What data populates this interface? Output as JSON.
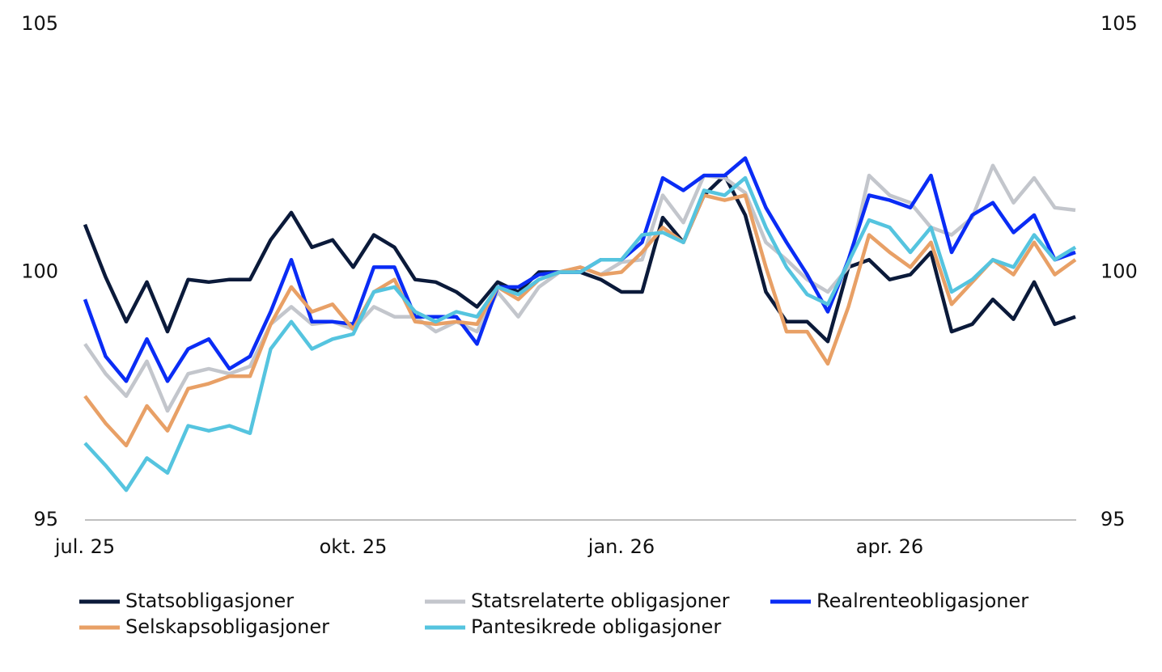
{
  "chart_data": {
    "type": "line",
    "categories": [
      "jul. 25",
      null,
      null,
      null,
      null,
      null,
      null,
      null,
      null,
      null,
      null,
      null,
      null,
      "okt. 25",
      null,
      null,
      null,
      null,
      null,
      null,
      null,
      null,
      null,
      null,
      null,
      null,
      "jan. 26",
      null,
      null,
      null,
      null,
      null,
      null,
      null,
      null,
      null,
      null,
      null,
      null,
      "apr. 26",
      null,
      null,
      null,
      null,
      null,
      null,
      null,
      null,
      null
    ],
    "series": [
      {
        "name": "Statsobligasjoner",
        "color": "#0b1a3a",
        "values": [
          100.96,
          99.9,
          99.0,
          99.8,
          98.8,
          99.85,
          99.8,
          99.85,
          99.85,
          100.65,
          101.2,
          100.5,
          100.65,
          100.1,
          100.75,
          100.5,
          99.85,
          99.8,
          99.6,
          99.3,
          99.8,
          99.6,
          100,
          100,
          100,
          99.85,
          99.6,
          99.6,
          101.1,
          100.6,
          101.55,
          101.95,
          101.15,
          99.6,
          99.0,
          99.0,
          98.6,
          100.1,
          100.25,
          99.85,
          99.95,
          100.4,
          98.8,
          98.95,
          99.45,
          99.05,
          99.8,
          98.95,
          99.1
        ]
      },
      {
        "name": "Statsrelaterte obligasjoner",
        "color": "#c3c6cc",
        "values": [
          98.55,
          97.95,
          97.5,
          98.2,
          97.2,
          97.95,
          98.05,
          97.95,
          98.1,
          98.95,
          99.3,
          98.95,
          99.0,
          98.85,
          99.3,
          99.1,
          99.1,
          98.8,
          99.0,
          98.8,
          99.6,
          99.1,
          99.7,
          100,
          100.1,
          99.95,
          100.2,
          100.25,
          101.55,
          101,
          101.95,
          101.9,
          101.6,
          100.6,
          100.25,
          99.85,
          99.6,
          100.1,
          101.95,
          101.55,
          101.4,
          100.9,
          100.75,
          101.1,
          102.15,
          101.4,
          101.9,
          101.3,
          101.25
        ]
      },
      {
        "name": "Realrenteobligasjoner",
        "color": "#0a2cf5",
        "values": [
          99.45,
          98.3,
          97.8,
          98.65,
          97.8,
          98.45,
          98.65,
          98.05,
          98.3,
          99.2,
          100.25,
          99.0,
          99.0,
          98.95,
          100.1,
          100.1,
          99.1,
          99.1,
          99.1,
          98.55,
          99.7,
          99.7,
          99.95,
          100,
          100,
          100.25,
          100.25,
          100.6,
          101.9,
          101.65,
          101.95,
          101.95,
          102.3,
          101.3,
          100.6,
          99.95,
          99.2,
          100.25,
          101.55,
          101.45,
          101.3,
          101.95,
          100.4,
          101.15,
          101.4,
          100.8,
          101.15,
          100.25,
          100.4
        ]
      },
      {
        "name": "Selskapsobligasjoner",
        "color": "#e8a066",
        "values": [
          97.5,
          96.95,
          96.5,
          97.3,
          96.8,
          97.65,
          97.75,
          97.9,
          97.9,
          98.95,
          99.7,
          99.2,
          99.35,
          98.85,
          99.6,
          99.85,
          99.0,
          98.95,
          99.0,
          98.95,
          99.7,
          99.45,
          99.85,
          100,
          100.1,
          99.95,
          100,
          100.4,
          100.9,
          100.6,
          101.55,
          101.45,
          101.55,
          100.1,
          98.8,
          98.8,
          98.15,
          99.3,
          100.75,
          100.4,
          100.1,
          100.6,
          99.35,
          99.8,
          100.25,
          99.95,
          100.6,
          99.95,
          100.25
        ]
      },
      {
        "name": "Pantesikrede obligasjoner",
        "color": "#55c4df",
        "values": [
          96.55,
          96.1,
          95.6,
          96.25,
          95.95,
          96.9,
          96.8,
          96.9,
          96.75,
          98.45,
          99.0,
          98.45,
          98.65,
          98.75,
          99.6,
          99.7,
          99.2,
          99.0,
          99.2,
          99.1,
          99.7,
          99.55,
          99.85,
          100,
          100,
          100.25,
          100.25,
          100.75,
          100.8,
          100.6,
          101.65,
          101.55,
          101.9,
          100.9,
          100.1,
          99.55,
          99.35,
          100.2,
          101.05,
          100.9,
          100.4,
          100.9,
          99.6,
          99.85,
          100.25,
          100.1,
          100.75,
          100.25,
          100.5
        ]
      }
    ],
    "ylim": [
      95,
      105
    ],
    "yticks": [
      95,
      100,
      105
    ],
    "y2lim": [
      95,
      105
    ],
    "y2ticks": [
      95,
      100,
      105
    ]
  }
}
